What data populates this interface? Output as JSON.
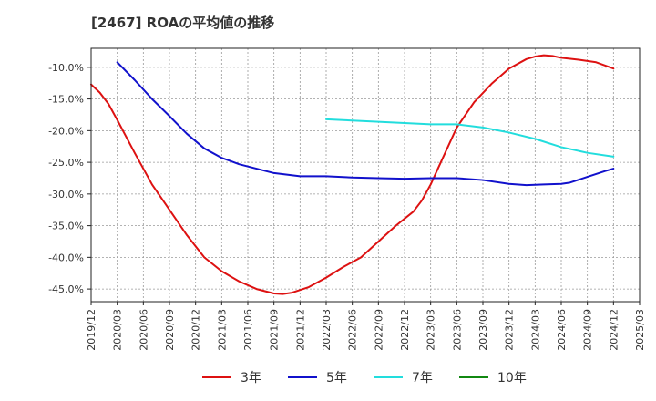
{
  "chart_data": {
    "type": "line",
    "title": "[2467]  ROAの平均値の推移",
    "ylim": [
      -47,
      -7
    ],
    "y_ticks": [
      -10,
      -15,
      -20,
      -25,
      -30,
      -35,
      -40,
      -45
    ],
    "y_tick_labels": [
      "-10.0%",
      "-15.0%",
      "-20.0%",
      "-25.0%",
      "-30.0%",
      "-35.0%",
      "-40.0%",
      "-45.0%"
    ],
    "x_range": [
      "2019/12",
      "2025/03"
    ],
    "x_tick_labels": [
      "2019/12",
      "2020/03",
      "2020/06",
      "2020/09",
      "2020/12",
      "2021/03",
      "2021/06",
      "2021/09",
      "2021/12",
      "2022/03",
      "2022/06",
      "2022/09",
      "2022/12",
      "2023/03",
      "2023/06",
      "2023/09",
      "2023/12",
      "2024/03",
      "2024/06",
      "2024/09",
      "2024/12",
      "2025/03"
    ],
    "grid": true,
    "legend_position": "bottom",
    "series": [
      {
        "name": "3年",
        "color": "#dd1111",
        "points": [
          [
            "2019/12",
            -12.7
          ],
          [
            "2020/01",
            -14.0
          ],
          [
            "2020/02",
            -15.8
          ],
          [
            "2020/03",
            -18.3
          ],
          [
            "2020/05",
            -23.5
          ],
          [
            "2020/07",
            -28.5
          ],
          [
            "2020/09",
            -32.5
          ],
          [
            "2020/11",
            -36.5
          ],
          [
            "2021/01",
            -40.0
          ],
          [
            "2021/03",
            -42.2
          ],
          [
            "2021/05",
            -43.8
          ],
          [
            "2021/07",
            -45.0
          ],
          [
            "2021/09",
            -45.7
          ],
          [
            "2021/10",
            -45.8
          ],
          [
            "2021/11",
            -45.6
          ],
          [
            "2022/01",
            -44.7
          ],
          [
            "2022/03",
            -43.2
          ],
          [
            "2022/05",
            -41.5
          ],
          [
            "2022/07",
            -40.0
          ],
          [
            "2022/09",
            -37.5
          ],
          [
            "2022/11",
            -35.0
          ],
          [
            "2023/01",
            -32.8
          ],
          [
            "2023/02",
            -31.0
          ],
          [
            "2023/03",
            -28.5
          ],
          [
            "2023/04",
            -25.5
          ],
          [
            "2023/06",
            -19.5
          ],
          [
            "2023/08",
            -15.5
          ],
          [
            "2023/10",
            -12.6
          ],
          [
            "2023/12",
            -10.2
          ],
          [
            "2024/02",
            -8.7
          ],
          [
            "2024/03",
            -8.3
          ],
          [
            "2024/04",
            -8.1
          ],
          [
            "2024/05",
            -8.2
          ],
          [
            "2024/06",
            -8.5
          ],
          [
            "2024/08",
            -8.8
          ],
          [
            "2024/10",
            -9.2
          ],
          [
            "2024/12",
            -10.2
          ]
        ]
      },
      {
        "name": "5年",
        "color": "#1111cc",
        "points": [
          [
            "2020/03",
            -9.2
          ],
          [
            "2020/05",
            -12.0
          ],
          [
            "2020/07",
            -15.0
          ],
          [
            "2020/09",
            -17.7
          ],
          [
            "2020/11",
            -20.5
          ],
          [
            "2021/01",
            -22.8
          ],
          [
            "2021/03",
            -24.3
          ],
          [
            "2021/05",
            -25.3
          ],
          [
            "2021/07",
            -26.0
          ],
          [
            "2021/09",
            -26.7
          ],
          [
            "2021/12",
            -27.2
          ],
          [
            "2022/03",
            -27.2
          ],
          [
            "2022/06",
            -27.4
          ],
          [
            "2022/09",
            -27.5
          ],
          [
            "2022/12",
            -27.6
          ],
          [
            "2023/03",
            -27.5
          ],
          [
            "2023/06",
            -27.5
          ],
          [
            "2023/09",
            -27.8
          ],
          [
            "2023/12",
            -28.4
          ],
          [
            "2024/02",
            -28.6
          ],
          [
            "2024/04",
            -28.5
          ],
          [
            "2024/06",
            -28.4
          ],
          [
            "2024/07",
            -28.2
          ],
          [
            "2024/09",
            -27.3
          ],
          [
            "2024/11",
            -26.4
          ],
          [
            "2024/12",
            -26.0
          ]
        ]
      },
      {
        "name": "7年",
        "color": "#22dddd",
        "points": [
          [
            "2022/03",
            -18.2
          ],
          [
            "2022/06",
            -18.4
          ],
          [
            "2022/09",
            -18.6
          ],
          [
            "2022/12",
            -18.8
          ],
          [
            "2023/03",
            -19.0
          ],
          [
            "2023/06",
            -19.0
          ],
          [
            "2023/09",
            -19.5
          ],
          [
            "2023/12",
            -20.3
          ],
          [
            "2024/03",
            -21.3
          ],
          [
            "2024/06",
            -22.6
          ],
          [
            "2024/09",
            -23.5
          ],
          [
            "2024/12",
            -24.1
          ]
        ]
      },
      {
        "name": "10年",
        "color": "#118811",
        "points": []
      }
    ]
  }
}
